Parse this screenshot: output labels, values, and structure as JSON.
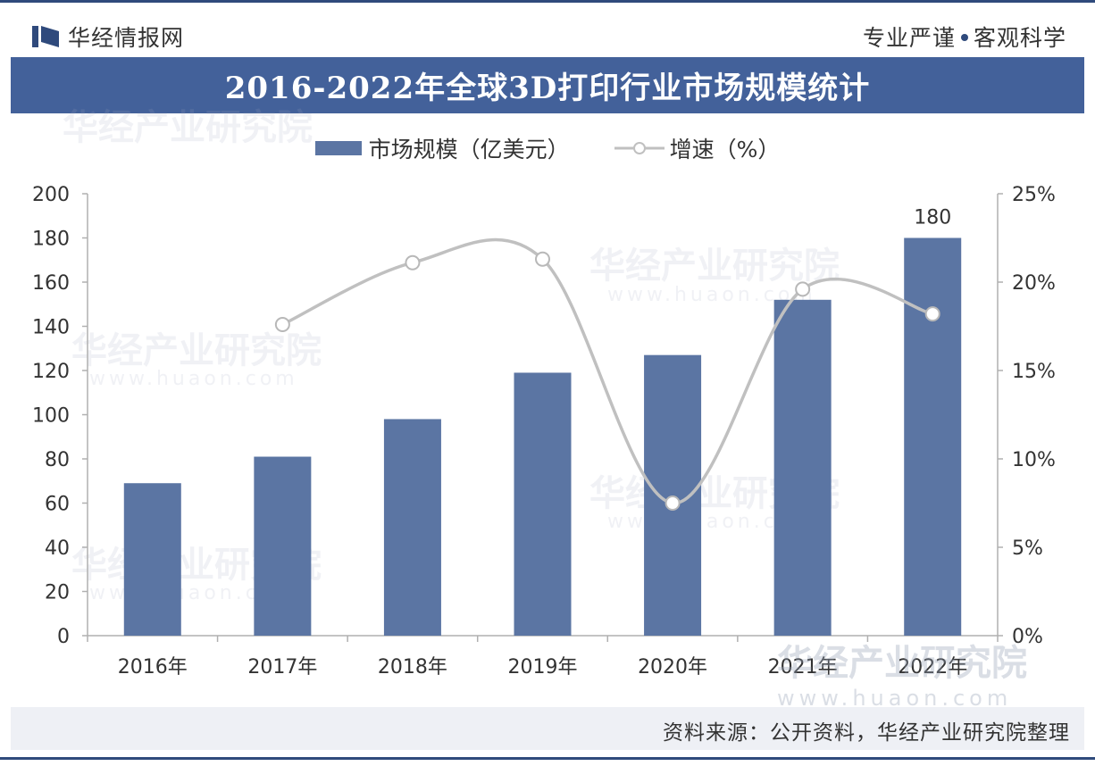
{
  "header": {
    "brand": "华经情报网",
    "slogan_left": "专业严谨",
    "slogan_right": "客观科学"
  },
  "watermark": {
    "text": "华经产业研究院",
    "url": "www.huaon.com"
  },
  "footer": {
    "source": "资料来源：公开资料，华经产业研究院整理"
  },
  "colors": {
    "bar": "#5b75a3",
    "line": "#c0c0c0",
    "title_bg": "#43619a",
    "accent": "#2f4a7c"
  },
  "chart_data": {
    "type": "bar",
    "title": "2016-2022年全球3D打印行业市场规模统计",
    "categories": [
      "2016年",
      "2017年",
      "2018年",
      "2019年",
      "2020年",
      "2021年",
      "2022年"
    ],
    "series": [
      {
        "name": "市场规模（亿美元）",
        "type": "bar",
        "axis": "left",
        "values": [
          69,
          81,
          98,
          119,
          127,
          152,
          180
        ]
      },
      {
        "name": "增速（%）",
        "type": "line",
        "axis": "right",
        "values": [
          null,
          17.6,
          21.1,
          21.3,
          7.5,
          19.6,
          18.2
        ]
      }
    ],
    "data_labels": [
      {
        "category": "2022年",
        "text": "180"
      }
    ],
    "y_left": {
      "min": 0,
      "max": 200,
      "step": 20,
      "ticks": [
        "0",
        "20",
        "40",
        "60",
        "80",
        "100",
        "120",
        "140",
        "160",
        "180",
        "200"
      ]
    },
    "y_right": {
      "min": 0,
      "max": 25,
      "step": 5,
      "ticks": [
        "0%",
        "5%",
        "10%",
        "15%",
        "20%",
        "25%"
      ]
    },
    "legend_position": "top-center",
    "grid": false
  }
}
